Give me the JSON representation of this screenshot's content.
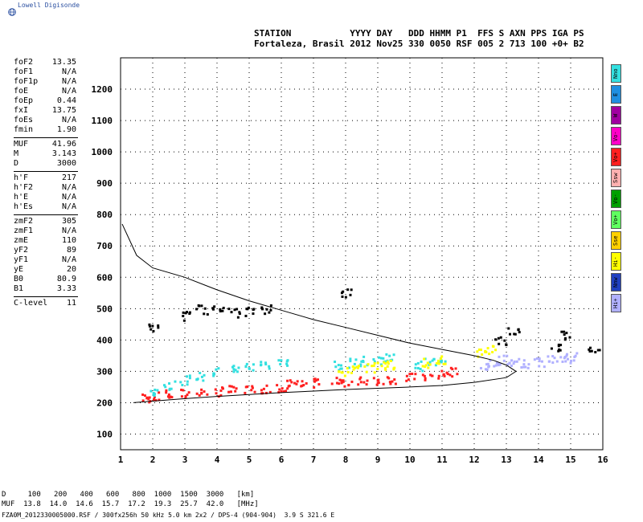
{
  "brand": {
    "label": "Lowell Digisonde"
  },
  "header": {
    "line1": "STATION           YYYY DAY   DDD HHMM P1  FFS S AXN PPS IGA PS",
    "line2": "Fortaleza, Brasil 2012 Nov25 330 0050 RSF 005 2 713 100 +0+ B2"
  },
  "params": [
    {
      "name": "foF2",
      "value": "13.35"
    },
    {
      "name": "foF1",
      "value": "N/A"
    },
    {
      "name": "foF1p",
      "value": "N/A"
    },
    {
      "name": "foE",
      "value": "N/A"
    },
    {
      "name": "foEp",
      "value": "0.44"
    },
    {
      "name": "fxI",
      "value": "13.75"
    },
    {
      "name": "foEs",
      "value": "N/A"
    },
    {
      "name": "fmin",
      "value": "1.90"
    },
    {
      "name": "MUF",
      "value": "41.96",
      "sep": true
    },
    {
      "name": "M",
      "value": "3.143"
    },
    {
      "name": "D",
      "value": "3000"
    },
    {
      "name": "h'F",
      "value": "217",
      "sep": true
    },
    {
      "name": "h'F2",
      "value": "N/A"
    },
    {
      "name": "h'E",
      "value": "N/A"
    },
    {
      "name": "h'Es",
      "value": "N/A"
    },
    {
      "name": "zmF2",
      "value": "305",
      "sep": true
    },
    {
      "name": "zmF1",
      "value": "N/A"
    },
    {
      "name": "zmE",
      "value": "110"
    },
    {
      "name": "yF2",
      "value": "89"
    },
    {
      "name": "yF1",
      "value": "N/A"
    },
    {
      "name": "yE",
      "value": "20"
    },
    {
      "name": "B0",
      "value": "80.9"
    },
    {
      "name": "B1",
      "value": "3.33"
    },
    {
      "name": "C-level",
      "value": "11",
      "sep": true
    }
  ],
  "legend": [
    {
      "label": "Nno",
      "color": "#33e0e0"
    },
    {
      "label": "E",
      "color": "#1f8fe0"
    },
    {
      "label": "W",
      "color": "#a000a0"
    },
    {
      "label": "Vo-",
      "color": "#ff00c8"
    },
    {
      "label": "Vo+",
      "color": "#ff2020"
    },
    {
      "label": "Ssw",
      "color": "#ffb0b0"
    },
    {
      "label": "Vo-",
      "color": "#00a000"
    },
    {
      "label": "Vo+",
      "color": "#60ff60"
    },
    {
      "label": "Sse",
      "color": "#ffd000"
    },
    {
      "label": "Hi-",
      "color": "#ffff00"
    },
    {
      "label": "Nnw",
      "color": "#2040c0"
    },
    {
      "label": "Hi+",
      "color": "#b0b0ff"
    }
  ],
  "footer": {
    "line1": "D     100   200   400   600   800  1000  1500  3000   [km]",
    "line2": "MUF  13.8  14.0  14.6  15.7  17.2  19.3  25.7  42.0   [MHz]",
    "line3": "FZA0M_2012330005000.RSF / 300fx256h 50 kHz 5.0 km 2x2 / DPS-4 (904-904)  3.9 S 321.6 E"
  },
  "chart_data": {
    "type": "scatter",
    "title": "",
    "xlabel": "",
    "ylabel": "",
    "xlim": [
      1,
      16
    ],
    "ylim": [
      50,
      1300
    ],
    "x_ticks": [
      1,
      2,
      3,
      4,
      5,
      6,
      7,
      8,
      9,
      10,
      11,
      12,
      13,
      14,
      15,
      16
    ],
    "y_ticks": [
      100,
      200,
      300,
      400,
      500,
      600,
      700,
      800,
      900,
      1000,
      1100,
      1200
    ],
    "grid": true,
    "profile_curve": {
      "name": "",
      "x": [
        1.05,
        1.5,
        2.0,
        3.0,
        4.0,
        5.0,
        6.0,
        7.0,
        8.0,
        9.0,
        10.0,
        11.0,
        12.0,
        12.6,
        13.0,
        13.3,
        13.0,
        12.0,
        11.0,
        10.0,
        9.0,
        8.0,
        7.0,
        6.0,
        5.0,
        4.0,
        3.0,
        2.0,
        1.4
      ],
      "y": [
        770,
        670,
        630,
        600,
        560,
        525,
        495,
        465,
        440,
        415,
        390,
        370,
        350,
        335,
        320,
        300,
        280,
        265,
        255,
        250,
        246,
        242,
        237,
        232,
        226,
        220,
        213,
        205,
        200
      ]
    },
    "echo_traces": [
      {
        "name": "",
        "color": "#ff2020",
        "x": [
          1.8,
          2.0,
          2.5,
          3.0,
          3.5,
          4.0,
          4.5,
          5.0,
          5.5,
          6.0,
          6.3,
          6.6,
          7.0,
          7.7,
          8.0,
          8.5,
          9.0,
          9.4,
          10.0,
          10.5,
          11.0,
          11.3
        ],
        "y": [
          218,
          222,
          228,
          232,
          235,
          238,
          242,
          245,
          248,
          252,
          262,
          260,
          265,
          268,
          270,
          272,
          275,
          278,
          282,
          286,
          292,
          300
        ]
      },
      {
        "name": "",
        "color": "#33e0e0",
        "x": [
          2.0,
          2.5,
          3.0,
          3.5,
          4.0,
          4.5,
          5.0,
          5.5,
          6.0,
          7.8,
          8.2,
          8.6,
          9.0,
          9.3,
          10.2,
          10.6,
          11.0
        ],
        "y": [
          240,
          260,
          275,
          285,
          300,
          310,
          320,
          325,
          330,
          320,
          330,
          335,
          340,
          345,
          320,
          335,
          345
        ]
      },
      {
        "name": "",
        "color": "#ffff00",
        "x": [
          7.9,
          8.3,
          8.7,
          9.1,
          9.4,
          10.5,
          10.9,
          12.2,
          12.5
        ],
        "y": [
          300,
          310,
          315,
          320,
          325,
          330,
          340,
          360,
          370
        ]
      },
      {
        "name": "",
        "color": "#b0b0ff",
        "x": [
          12.3,
          12.6,
          12.9,
          13.2,
          13.6,
          14.0,
          14.4,
          14.8,
          15.0
        ],
        "y": [
          320,
          330,
          340,
          335,
          325,
          330,
          340,
          345,
          350
        ]
      },
      {
        "name": "",
        "color": "#000000",
        "x": [
          2.0,
          3.0,
          3.5,
          4.0,
          4.5,
          5.0,
          5.5,
          8.0,
          12.8,
          13.2,
          14.5,
          14.8,
          15.7
        ],
        "y": [
          440,
          480,
          500,
          510,
          490,
          495,
          500,
          555,
          400,
          430,
          380,
          420,
          378
        ]
      }
    ]
  }
}
